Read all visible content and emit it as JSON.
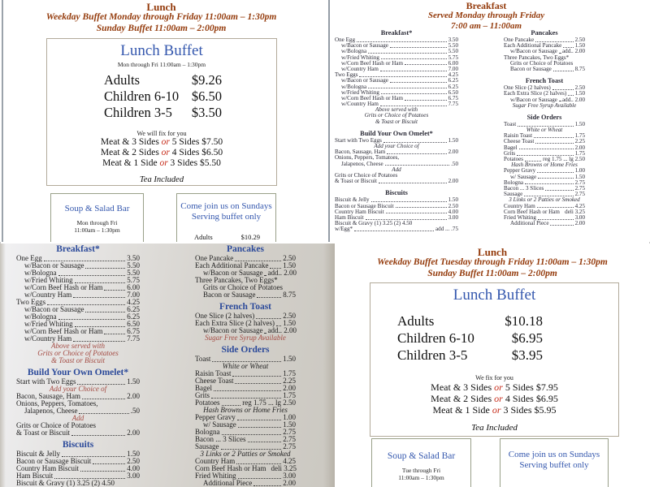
{
  "colors": {
    "header_brown": "#943b0c",
    "heading_blue": "#3558ae",
    "photo_heading_blue": "#2c4a9a",
    "note_red": "#b44a3f",
    "or_red": "#c62c1a",
    "body_text": "#101010",
    "photo_background": "#d3d0ca",
    "box_border": "#b2aa9a"
  },
  "lunch_v1": {
    "title": "Lunch",
    "subtitle1": "Weekday Buffet Monday through Friday 11:00am – 1:30pm",
    "subtitle2": "Sunday Buffet 11:00am – 2:00pm",
    "box": {
      "title": "Lunch Buffet",
      "subtitle": "Mon through Fri 11:00am – 1:30pm",
      "prices": [
        {
          "label": "Adults",
          "price": "$9.26"
        },
        {
          "label": "Children 6-10",
          "price": "$6.50"
        },
        {
          "label": "Children 3-5",
          "price": "$3.50"
        }
      ],
      "fix_title": "We will fix for you",
      "fix": [
        {
          "pre": "Meat & 3 Sides ",
          "or": "or",
          "post": " 5 Sides $7.50"
        },
        {
          "pre": "Meat & 2 Sides ",
          "or": "or",
          "post": " 4 Sides $6.50"
        },
        {
          "pre": "Meat & 1 Side ",
          "or": "or",
          "post": " 3 Sides $5.50"
        }
      ],
      "note": "Tea Included"
    },
    "soup_box": {
      "title": "Soup & Salad Bar",
      "line1": "Mon through Fri",
      "line2": "11:00am – 1:30pm"
    },
    "sunday_box": {
      "line1": "Come join us on Sundays",
      "line2": "Serving buffet only",
      "partial_label": "Adults",
      "partial_price": "$10.29"
    }
  },
  "lunch_v2": {
    "title": "Lunch",
    "subtitle1": "Weekday Buffet Tuesday through Friday 11:00am – 1:30pm",
    "subtitle2": "Sunday Buffet 11:00am – 2:00pm",
    "box": {
      "title": "Lunch Buffet",
      "prices": [
        {
          "label": "Adults",
          "price": "$10.18"
        },
        {
          "label": "Children 6-10",
          "price": "$6.95"
        },
        {
          "label": "Children 3-5",
          "price": "$3.95"
        }
      ],
      "fix_title": "We fix for you",
      "fix": [
        {
          "pre": "Meat & 3 Sides ",
          "or": "or",
          "post": " 5 Sides $7.95"
        },
        {
          "pre": "Meat & 2 Sides ",
          "or": "or",
          "post": " 4 Sides $6.95"
        },
        {
          "pre": "Meat & 1 Side ",
          "or": "or",
          "post": " 3 Sides $5.95"
        }
      ],
      "note": "Tea Included"
    },
    "soup_box": {
      "title": "Soup & Salad Bar",
      "line1": "Tue through Fri",
      "line2": "11:00am – 1:30pm"
    },
    "sunday_box": {
      "line1": "Come join us on Sundays",
      "line2": "Serving buffet only"
    }
  },
  "breakfast": {
    "title": "Breakfast",
    "subtitle1": "Served Monday through Friday",
    "subtitle2": "7:00 am – 11:00am",
    "col1": [
      {
        "t": "h",
        "n": "Breakfast*"
      },
      {
        "t": "i",
        "n": "One Egg",
        "p": "3.50"
      },
      {
        "t": "i",
        "n": "w/Bacon or Sausage",
        "p": "5.50",
        "ind": 1
      },
      {
        "t": "i",
        "n": "w/Bologna",
        "p": "5.50",
        "ind": 1
      },
      {
        "t": "i",
        "n": "w/Fried Whiting",
        "p": "5.75",
        "ind": 1
      },
      {
        "t": "i",
        "n": "w/Corn Beef Hash or Ham",
        "p": "6.00",
        "ind": 1
      },
      {
        "t": "i",
        "n": "w/Country Ham",
        "p": "7.00",
        "ind": 1
      },
      {
        "t": "i",
        "n": "Two Eggs",
        "p": "4.25"
      },
      {
        "t": "i",
        "n": "w/Bacon or Sausage",
        "p": "6.25",
        "ind": 1
      },
      {
        "t": "i",
        "n": "w/Bologna",
        "p": "6.25",
        "ind": 1
      },
      {
        "t": "i",
        "n": "w/Fried Whiting",
        "p": "6.50",
        "ind": 1
      },
      {
        "t": "i",
        "n": "w/Corn Beef Hash or Ham",
        "p": "6.75",
        "ind": 1
      },
      {
        "t": "i",
        "n": "w/Country Ham",
        "p": "7.75",
        "ind": 1
      },
      {
        "t": "r",
        "n": "Above served with"
      },
      {
        "t": "r",
        "n": "Grits or Choice of Potatoes"
      },
      {
        "t": "r",
        "n": "& Toast or Biscuit"
      },
      {
        "t": "h",
        "n": "Build Your Own Omelet*"
      },
      {
        "t": "i",
        "n": "Start with Two Eggs",
        "p": "1.50"
      },
      {
        "t": "r",
        "n": "Add your Choice of"
      },
      {
        "t": "i",
        "n": "Bacon, Sausage, Ham",
        "p": "2.00"
      },
      {
        "t": "p",
        "n": "Onions, Peppers, Tomatoes,"
      },
      {
        "t": "i",
        "n": "Jalapenos, Cheese",
        "p": ".50",
        "ind": 1
      },
      {
        "t": "r",
        "n": "Add"
      },
      {
        "t": "p",
        "n": "Grits or Choice of Potatoes"
      },
      {
        "t": "i",
        "n": "& Toast or Biscuit",
        "p": "2.00"
      },
      {
        "t": "h",
        "n": "Biscuits"
      },
      {
        "t": "i",
        "n": "Biscuit & Jelly",
        "p": "1.50"
      },
      {
        "t": "i",
        "n": "Bacon or Sausage Biscuit",
        "p": "2.50"
      },
      {
        "t": "i",
        "n": "Country Ham Biscuit",
        "p": "4.00"
      },
      {
        "t": "i",
        "n": "Ham Biscuit",
        "p": "3.00"
      },
      {
        "t": "p",
        "n": "Biscuit & Gravy (1) 3.25 (2) 4.50"
      },
      {
        "t": "i",
        "n": "w/Egg*",
        "p": "add ... .75"
      }
    ],
    "col2": [
      {
        "t": "h",
        "n": "Pancakes"
      },
      {
        "t": "i",
        "n": "One Pancake",
        "p": "2.50"
      },
      {
        "t": "i",
        "n": "Each Additional Pancake",
        "p": "1.50"
      },
      {
        "t": "i",
        "n": "w/Bacon or Sausage",
        "p": "add.. 2.00",
        "ind": 1
      },
      {
        "t": "p",
        "n": "Three Pancakes, Two Eggs*"
      },
      {
        "t": "p",
        "n": "Grits or Choice of Potatoes",
        "ind": 1
      },
      {
        "t": "i",
        "n": "Bacon or Sausage",
        "p": "8.75",
        "ind": 1
      },
      {
        "t": "h",
        "n": "French Toast"
      },
      {
        "t": "i",
        "n": "One Slice (2 halves)",
        "p": "2.50"
      },
      {
        "t": "i",
        "n": "Each Extra Slice (2 halves)",
        "p": "1.50"
      },
      {
        "t": "i",
        "n": "w/Bacon or Sausage",
        "p": "add.. 2.00",
        "ind": 1
      },
      {
        "t": "r",
        "n": "Sugar Free Syrup Available"
      },
      {
        "t": "h",
        "n": "Side Orders"
      },
      {
        "t": "i",
        "n": "Toast",
        "p": "1.50"
      },
      {
        "t": "n",
        "n": "White or Wheat"
      },
      {
        "t": "i",
        "n": "Raisin Toast",
        "p": "1.75"
      },
      {
        "t": "i",
        "n": "Cheese Toast",
        "p": "2.25"
      },
      {
        "t": "i",
        "n": "Bagel",
        "p": "2.00"
      },
      {
        "t": "i",
        "n": "Grits",
        "p": "1.75"
      },
      {
        "t": "i",
        "n": "Potatoes",
        "p": "reg 1.75 ... lg 2.50"
      },
      {
        "t": "n",
        "n": "Hash Browns or Home Fries"
      },
      {
        "t": "i",
        "n": "Pepper Gravy",
        "p": "1.00"
      },
      {
        "t": "i",
        "n": "w/ Sausage",
        "p": "1.50",
        "ind": 1
      },
      {
        "t": "i",
        "n": "Bologna",
        "p": "2.75"
      },
      {
        "t": "i",
        "n": "Bacon ... 3 Slices",
        "p": "2.75"
      },
      {
        "t": "i",
        "n": "Sausage",
        "p": "2.75"
      },
      {
        "t": "n",
        "n": "3 Links or 2 Patties or Smoked"
      },
      {
        "t": "i",
        "n": "Country Ham",
        "p": "4.25"
      },
      {
        "t": "i",
        "n": "Corn Beef Hash or Ham",
        "p": "deli 3.25",
        "nd": 1
      },
      {
        "t": "i",
        "n": "Fried Whiting",
        "p": "3.00"
      },
      {
        "t": "i",
        "n": "Additional Piece",
        "p": "2.00",
        "ind": 1
      }
    ]
  }
}
